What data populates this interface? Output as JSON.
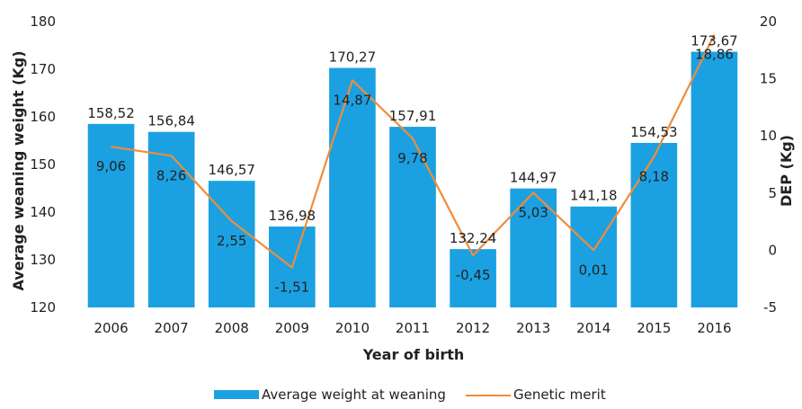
{
  "chart_data": {
    "type": "bar",
    "xlabel": "Year of birth",
    "ylabel": "Average weaning weight (Kg)",
    "y2label": "DEP (Kg)",
    "ylim": [
      120,
      180
    ],
    "y2lim": [
      -5,
      20
    ],
    "yticks": [
      "120",
      "130",
      "140",
      "150",
      "160",
      "170",
      "180"
    ],
    "y2ticks": [
      "-5",
      "0",
      "5",
      "10",
      "15",
      "20"
    ],
    "categories": [
      "2006",
      "2007",
      "2008",
      "2009",
      "2010",
      "2011",
      "2012",
      "2013",
      "2014",
      "2015",
      "2016"
    ],
    "series": [
      {
        "name": "Average weight at weaning",
        "type": "bar",
        "axis": "left",
        "color": "#1ba1e2",
        "values": [
          158.52,
          156.84,
          146.57,
          136.98,
          170.27,
          157.91,
          132.24,
          144.97,
          141.18,
          154.53,
          173.67
        ],
        "labels": [
          "158,52",
          "156,84",
          "146,57",
          "136,98",
          "170,27",
          "157,91",
          "132,24",
          "144,97",
          "141,18",
          "154,53",
          "173,67"
        ]
      },
      {
        "name": "Genetic merit",
        "type": "line",
        "axis": "right",
        "color": "#f08c3a",
        "values": [
          9.06,
          8.26,
          2.55,
          -1.51,
          14.87,
          9.78,
          -0.45,
          5.03,
          0.01,
          8.18,
          18.86
        ],
        "labels": [
          "9,06",
          "8,26",
          "2,55",
          "-1,51",
          "14,87",
          "9,78",
          "-0,45",
          "5,03",
          "0,01",
          "8,18",
          "18,86"
        ]
      }
    ],
    "legend_position": "bottom",
    "grid": false
  }
}
